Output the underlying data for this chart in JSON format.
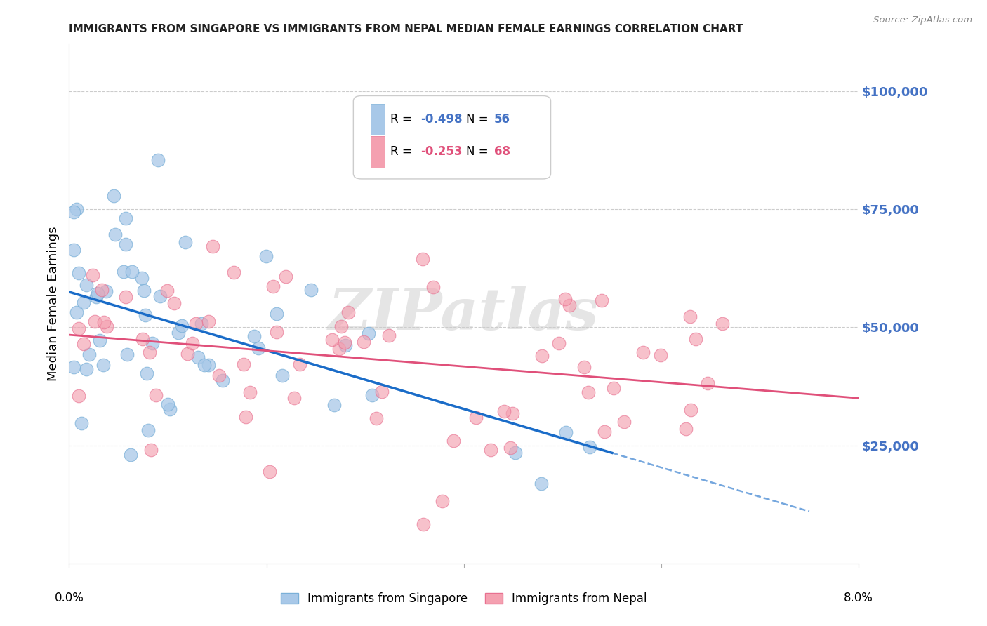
{
  "title": "IMMIGRANTS FROM SINGAPORE VS IMMIGRANTS FROM NEPAL MEDIAN FEMALE EARNINGS CORRELATION CHART",
  "source": "Source: ZipAtlas.com",
  "ylabel": "Median Female Earnings",
  "ytick_values": [
    25000,
    50000,
    75000,
    100000
  ],
  "ymin": 0,
  "ymax": 110000,
  "xmin": 0.0,
  "xmax": 0.08,
  "singapore_color": "#a8c8e8",
  "nepal_color": "#f4a0b0",
  "singapore_edge_color": "#7ab0d8",
  "nepal_edge_color": "#e87090",
  "singapore_line_color": "#1a6cc8",
  "nepal_line_color": "#e0507a",
  "watermark_text": "ZIPatlas",
  "legend_label_singapore": "Immigrants from Singapore",
  "legend_label_nepal": "Immigrants from Nepal",
  "sg_R": "-0.498",
  "sg_N": "56",
  "np_R": "-0.253",
  "np_N": "68",
  "ytick_color": "#4472c4",
  "title_color": "#222222",
  "source_color": "#888888"
}
